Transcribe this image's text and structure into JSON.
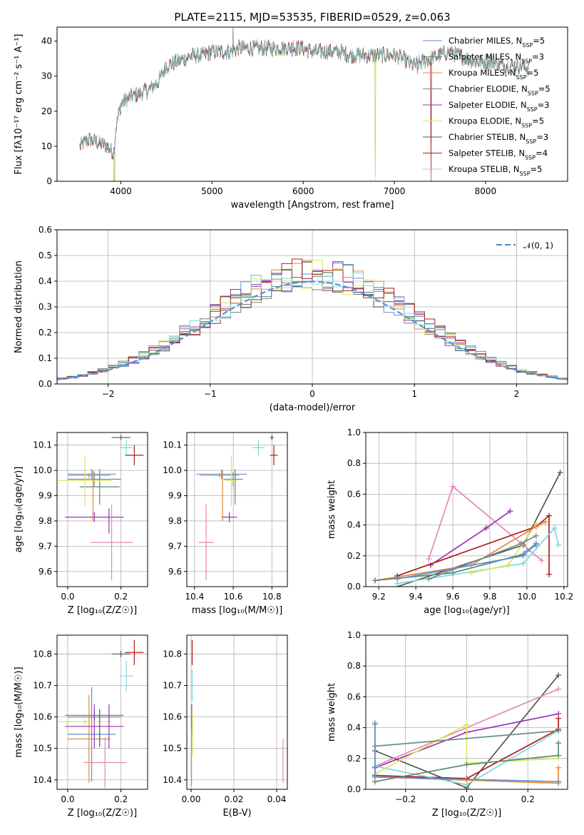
{
  "figure": {
    "title": "PLATE=2115, MJD=53535, FIBERID=0529, z=0.063"
  },
  "colors": {
    "cmiles": "#5b8fd6",
    "smiles": "#5b8a72",
    "kmiles": "#e08a3c",
    "celodie": "#6d8c8c",
    "selodie": "#9b32b4",
    "kelodie": "#d6e85a",
    "cstelib": "#555555",
    "sstelib": "#b01c1c",
    "kstelib": "#7fd8dc",
    "pink": "#e388b8",
    "normal": "#5b8fd6"
  },
  "chart_data": [
    {
      "id": "spectrum",
      "type": "line",
      "xlabel": "wavelength [Angstrom, rest frame]",
      "ylabel": "Flux [fλ10⁻¹⁷ erg cm⁻² s⁻¹ A⁻¹]",
      "xlim": [
        3300,
        8900
      ],
      "ylim": [
        0,
        44
      ],
      "xticks": [
        4000,
        5000,
        6000,
        7000,
        8000
      ],
      "yticks": [
        0,
        10,
        20,
        30,
        40
      ],
      "grid": false,
      "legend_position": "right",
      "series": [
        {
          "name": "Chabrier MILES, N_SSP=5",
          "color": "cmiles"
        },
        {
          "name": "Salpeter MILES, N_SSP=3",
          "color": "smiles"
        },
        {
          "name": "Kroupa MILES, N_SSP=5",
          "color": "kmiles"
        },
        {
          "name": "Chabrier ELODIE, N_SSP=5",
          "color": "celodie"
        },
        {
          "name": "Salpeter ELODIE, N_SSP=3",
          "color": "selodie"
        },
        {
          "name": "Kroupa ELODIE, N_SSP=5",
          "color": "kelodie"
        },
        {
          "name": "Chabrier STELIB, N_SSP=3",
          "color": "cstelib"
        },
        {
          "name": "Salpeter STELIB, N_SSP=4",
          "color": "sstelib"
        },
        {
          "name": "Kroupa STELIB, N_SSP=5",
          "color": "kstelib"
        }
      ],
      "continuum": [
        [
          3550,
          10
        ],
        [
          3650,
          12
        ],
        [
          3750,
          11
        ],
        [
          3850,
          10
        ],
        [
          3920,
          8
        ],
        [
          3950,
          16
        ],
        [
          4000,
          22
        ],
        [
          4100,
          24
        ],
        [
          4200,
          25
        ],
        [
          4300,
          26
        ],
        [
          4400,
          28
        ],
        [
          4500,
          33
        ],
        [
          4600,
          34
        ],
        [
          4700,
          35
        ],
        [
          4800,
          36
        ],
        [
          4900,
          36
        ],
        [
          5000,
          37
        ],
        [
          5100,
          37
        ],
        [
          5200,
          37
        ],
        [
          5300,
          38
        ],
        [
          5400,
          38
        ],
        [
          5500,
          38
        ],
        [
          5600,
          38
        ],
        [
          5700,
          38
        ],
        [
          5800,
          38
        ],
        [
          5900,
          38
        ],
        [
          6000,
          38
        ],
        [
          6100,
          37
        ],
        [
          6200,
          37
        ],
        [
          6300,
          37
        ],
        [
          6400,
          37
        ],
        [
          6500,
          36
        ],
        [
          6600,
          36
        ],
        [
          6700,
          36
        ],
        [
          6800,
          36
        ],
        [
          6900,
          36
        ],
        [
          7000,
          36
        ],
        [
          7100,
          35
        ],
        [
          7200,
          33
        ],
        [
          7300,
          34
        ],
        [
          7400,
          35
        ],
        [
          7500,
          36
        ],
        [
          7600,
          37
        ],
        [
          7700,
          36
        ],
        [
          7800,
          35
        ],
        [
          7900,
          34
        ],
        [
          8000,
          34
        ],
        [
          8100,
          34
        ],
        [
          8200,
          33
        ],
        [
          8300,
          33
        ],
        [
          8400,
          33
        ],
        [
          8500,
          32
        ]
      ]
    },
    {
      "id": "residuals",
      "type": "line",
      "xlabel": "(data-model)/error",
      "ylabel": "Normed distribution",
      "xlim": [
        -2.5,
        2.5
      ],
      "ylim": [
        0,
        0.6
      ],
      "xticks": [
        -2,
        -1,
        0,
        1,
        2
      ],
      "yticks": [
        0.0,
        0.1,
        0.2,
        0.3,
        0.4,
        0.5,
        0.6
      ],
      "grid": true,
      "legend": "𝒩(0, 1)",
      "legend_position": "top-right",
      "bin_width": 0.1,
      "series_colors": [
        "cmiles",
        "smiles",
        "kmiles",
        "celodie",
        "selodie",
        "kelodie",
        "cstelib",
        "sstelib",
        "kstelib"
      ]
    },
    {
      "id": "age_vs_Z",
      "type": "scatter",
      "xlabel": "Z [log₁₀(Z/Z☉)]",
      "ylabel": "age  [log₁₀(age/yr)]",
      "xlim": [
        -0.04,
        0.3
      ],
      "ylim": [
        9.54,
        10.15
      ],
      "xticks": [
        0.0,
        0.2
      ],
      "yticks": [
        9.6,
        9.7,
        9.8,
        9.9,
        10.0,
        10.1
      ],
      "grid": true,
      "points": [
        {
          "color": "cmiles",
          "x": 0.09,
          "xerr": 0.09,
          "y": 9.985,
          "yerr": 0.02
        },
        {
          "color": "smiles",
          "x": 0.12,
          "xerr": 0.075,
          "y": 9.935,
          "yerr": 0.07
        },
        {
          "color": "kmiles",
          "x": 0.08,
          "xerr": 0.08,
          "y": 9.98,
          "yerr": 0.01
        },
        {
          "color": "celodie",
          "x": 0.1,
          "xerr": 0.1,
          "y": 9.965,
          "yerr": 0.03
        },
        {
          "color": "selodie",
          "x": 0.1,
          "xerr": 0.11,
          "y": 9.815,
          "yerr": 0.02
        },
        {
          "color": "kelodie",
          "x": 0.065,
          "xerr": 0.1,
          "y": 9.96,
          "yerr": 0.1
        },
        {
          "color": "cstelib",
          "x": 0.2,
          "xerr": 0.035,
          "y": 10.13,
          "yerr": 0.01
        },
        {
          "color": "sstelib",
          "x": 0.25,
          "xerr": 0.035,
          "y": 10.06,
          "yerr": 0.04
        },
        {
          "color": "kstelib",
          "x": 0.22,
          "xerr": 0.025,
          "y": 10.09,
          "yerr": 0.03
        },
        {
          "color": "pink",
          "x": 0.165,
          "xerr": 0.08,
          "y": 9.715,
          "yerr": 0.15
        },
        {
          "color": "selodie",
          "x": 0.155,
          "xerr": 0.0,
          "y": 9.8,
          "yerr": 0.05
        },
        {
          "color": "kmiles",
          "x": 0.095,
          "xerr": 0.0,
          "y": 9.9,
          "yerr": 0.1
        }
      ]
    },
    {
      "id": "age_vs_mass",
      "type": "scatter",
      "xlabel": "mass [log₁₀(M/M☉)]",
      "ylabel": "",
      "xlim": [
        10.36,
        10.88
      ],
      "ylim": [
        9.54,
        10.15
      ],
      "xticks": [
        10.4,
        10.6,
        10.8
      ],
      "yticks": [
        9.6,
        9.7,
        9.8,
        9.9,
        10.0,
        10.1
      ],
      "grid": true,
      "points": [
        {
          "color": "cmiles",
          "x": 10.54,
          "xerr": 0.13,
          "y": 9.985,
          "yerr": 0.02
        },
        {
          "color": "smiles",
          "x": 10.61,
          "xerr": 0.0,
          "y": 9.935,
          "yerr": 0.07
        },
        {
          "color": "kmiles",
          "x": 10.53,
          "xerr": 0.1,
          "y": 9.98,
          "yerr": 0.01
        },
        {
          "color": "celodie",
          "x": 10.6,
          "xerr": 0.05,
          "y": 9.965,
          "yerr": 0.03
        },
        {
          "color": "selodie",
          "x": 10.58,
          "xerr": 0.04,
          "y": 9.815,
          "yerr": 0.02
        },
        {
          "color": "kelodie",
          "x": 10.59,
          "xerr": 0.03,
          "y": 9.96,
          "yerr": 0.1
        },
        {
          "color": "cstelib",
          "x": 10.8,
          "xerr": 0.01,
          "y": 10.13,
          "yerr": 0.01
        },
        {
          "color": "sstelib",
          "x": 10.81,
          "xerr": 0.02,
          "y": 10.06,
          "yerr": 0.04
        },
        {
          "color": "kstelib",
          "x": 10.73,
          "xerr": 0.03,
          "y": 10.09,
          "yerr": 0.03
        },
        {
          "color": "pink",
          "x": 10.46,
          "xerr": 0.04,
          "y": 9.715,
          "yerr": 0.15
        },
        {
          "color": "kmiles",
          "x": 10.545,
          "xerr": 0.0,
          "y": 9.9,
          "yerr": 0.1
        }
      ]
    },
    {
      "id": "weight_vs_age",
      "type": "line",
      "xlabel": "age  [log₁₀(age/yr)]",
      "ylabel": "mass weight",
      "xlim": [
        9.13,
        10.22
      ],
      "ylim": [
        0,
        1.0
      ],
      "xticks": [
        9.2,
        9.4,
        9.6,
        9.8,
        10.0,
        10.2
      ],
      "yticks": [
        0.0,
        0.2,
        0.4,
        0.6,
        0.8,
        1.0
      ],
      "grid": true,
      "series": [
        {
          "color": "cstelib",
          "x": [
            9.3,
            9.98,
            10.18
          ],
          "y": [
            0.0,
            0.27,
            0.74
          ]
        },
        {
          "color": "pink",
          "x": [
            9.47,
            9.6,
            10.08
          ],
          "y": [
            0.18,
            0.65,
            0.17
          ]
        },
        {
          "color": "selodie",
          "x": [
            9.48,
            9.78,
            9.91
          ],
          "y": [
            0.14,
            0.38,
            0.49
          ]
        },
        {
          "color": "sstelib",
          "x": [
            9.3,
            10.05,
            10.12,
            10.12
          ],
          "y": [
            0.07,
            0.39,
            0.46,
            0.08
          ]
        },
        {
          "color": "kstelib",
          "x": [
            9.3,
            9.98,
            10.15,
            10.17
          ],
          "y": [
            0.02,
            0.15,
            0.38,
            0.27
          ]
        },
        {
          "color": "kelodie",
          "x": [
            9.7,
            9.9,
            10.05
          ],
          "y": [
            0.09,
            0.14,
            0.41
          ]
        },
        {
          "color": "kmiles",
          "x": [
            9.18,
            9.7,
            10.05,
            10.1
          ],
          "y": [
            0.04,
            0.14,
            0.39,
            0.42
          ]
        },
        {
          "color": "smiles",
          "x": [
            9.18,
            9.6,
            9.98,
            10.05
          ],
          "y": [
            0.04,
            0.09,
            0.21,
            0.28
          ]
        },
        {
          "color": "cmiles",
          "x": [
            9.3,
            9.98,
            10.0,
            10.05
          ],
          "y": [
            0.05,
            0.2,
            0.23,
            0.27
          ]
        },
        {
          "color": "celodie",
          "x": [
            9.47,
            9.97,
            10.05
          ],
          "y": [
            0.05,
            0.28,
            0.33
          ]
        }
      ]
    },
    {
      "id": "mass_vs_Z",
      "type": "scatter",
      "xlabel": "Z [log₁₀(Z/Z☉)]",
      "ylabel": "mass [log₁₀(M/M☉)]",
      "xlim": [
        -0.04,
        0.3
      ],
      "ylim": [
        10.37,
        10.86
      ],
      "xticks": [
        0.0,
        0.2
      ],
      "yticks": [
        10.4,
        10.5,
        10.6,
        10.7,
        10.8
      ],
      "grid": true,
      "points": [
        {
          "color": "cmiles",
          "x": 0.09,
          "xerr": 0.09,
          "y": 10.545,
          "yerr": 0.15
        },
        {
          "color": "smiles",
          "x": 0.1,
          "xerr": 0.11,
          "y": 10.605,
          "yerr": 0.02
        },
        {
          "color": "kmiles",
          "x": 0.08,
          "xerr": 0.08,
          "y": 10.53,
          "yerr": 0.14
        },
        {
          "color": "celodie",
          "x": 0.1,
          "xerr": 0.1,
          "y": 10.6,
          "yerr": 0.01
        },
        {
          "color": "selodie",
          "x": 0.1,
          "xerr": 0.11,
          "y": 10.57,
          "yerr": 0.07
        },
        {
          "color": "kelodie",
          "x": 0.065,
          "xerr": 0.1,
          "y": 10.585,
          "yerr": 0.01
        },
        {
          "color": "cstelib",
          "x": 0.2,
          "xerr": 0.035,
          "y": 10.8,
          "yerr": 0.01
        },
        {
          "color": "sstelib",
          "x": 0.25,
          "xerr": 0.035,
          "y": 10.805,
          "yerr": 0.04
        },
        {
          "color": "kstelib",
          "x": 0.22,
          "xerr": 0.025,
          "y": 10.73,
          "yerr": 0.05
        },
        {
          "color": "pink",
          "x": 0.14,
          "xerr": 0.08,
          "y": 10.455,
          "yerr": 0.08
        },
        {
          "color": "selodie",
          "x": 0.155,
          "xerr": 0.0,
          "y": 10.57,
          "yerr": 0.07
        },
        {
          "color": "cstelib",
          "x": 0.12,
          "xerr": 0.0,
          "y": 10.565,
          "yerr": 0.06
        }
      ]
    },
    {
      "id": "mass_vs_ebv",
      "type": "scatter",
      "xlabel": "E(B-V)",
      "ylabel": "",
      "xlim": [
        -0.002,
        0.045
      ],
      "ylim": [
        10.37,
        10.86
      ],
      "xticks": [
        0.0,
        0.02,
        0.04
      ],
      "yticks": [
        10.4,
        10.5,
        10.6,
        10.7,
        10.8
      ],
      "grid": true,
      "points": [
        {
          "color": "sstelib",
          "x": 0.0005,
          "xerr": 0.0,
          "y": 10.805,
          "yerr": 0.04
        },
        {
          "color": "kstelib",
          "x": 0.0005,
          "xerr": 0.0,
          "y": 10.7,
          "yerr": 0.05
        },
        {
          "color": "selodie",
          "x": 0.0003,
          "xerr": 0.0,
          "y": 10.59,
          "yerr": 0.05
        },
        {
          "color": "kelodie",
          "x": 0.0006,
          "xerr": 0.0,
          "y": 10.55,
          "yerr": 0.07
        },
        {
          "color": "kmiles",
          "x": 0.0002,
          "xerr": 0.0,
          "y": 10.47,
          "yerr": 0.09
        },
        {
          "color": "pink",
          "x": 0.043,
          "xerr": 0.0,
          "y": 10.46,
          "yerr": 0.07
        }
      ]
    },
    {
      "id": "weight_vs_Z",
      "type": "line",
      "xlabel": "Z [log₁₀(Z/Z☉)]",
      "ylabel": "mass weight",
      "xlim": [
        -0.33,
        0.33
      ],
      "ylim": [
        0,
        1.0
      ],
      "xticks": [
        -0.2,
        0.0,
        0.2
      ],
      "yticks": [
        0.0,
        0.2,
        0.4,
        0.6,
        0.8,
        1.0
      ],
      "grid": true,
      "series": [
        {
          "color": "cstelib",
          "x": [
            -0.3,
            0.0,
            0.3
          ],
          "y": [
            0.25,
            0.01,
            0.74
          ]
        },
        {
          "color": "pink",
          "x": [
            -0.3,
            0.3
          ],
          "y": [
            0.15,
            0.65
          ]
        },
        {
          "color": "selodie",
          "x": [
            -0.3,
            0.0,
            0.3
          ],
          "y": [
            0.14,
            0.37,
            0.49
          ]
        },
        {
          "color": "sstelib",
          "x": [
            -0.3,
            0.0,
            0.3,
            0.3
          ],
          "y": [
            0.09,
            0.07,
            0.39,
            0.46
          ]
        },
        {
          "color": "kstelib",
          "x": [
            -0.3,
            0.0,
            0.3
          ],
          "y": [
            0.15,
            0.03,
            0.38
          ]
        },
        {
          "color": "kelodie",
          "x": [
            -0.3,
            0.0,
            0.0,
            0.3
          ],
          "y": [
            0.1,
            0.42,
            0.17,
            0.2
          ]
        },
        {
          "color": "smiles",
          "x": [
            -0.3,
            0.0,
            0.3,
            0.3
          ],
          "y": [
            0.05,
            0.16,
            0.22,
            0.3
          ]
        },
        {
          "color": "kmiles",
          "x": [
            -0.3,
            -0.3,
            0.0,
            0.3,
            0.3
          ],
          "y": [
            0.42,
            0.08,
            0.06,
            0.04,
            0.14
          ]
        },
        {
          "color": "cmiles",
          "x": [
            -0.3,
            -0.3,
            0.3
          ],
          "y": [
            0.43,
            0.08,
            0.05
          ]
        },
        {
          "color": "celodie",
          "x": [
            -0.3,
            0.3
          ],
          "y": [
            0.28,
            0.38
          ]
        }
      ]
    }
  ]
}
